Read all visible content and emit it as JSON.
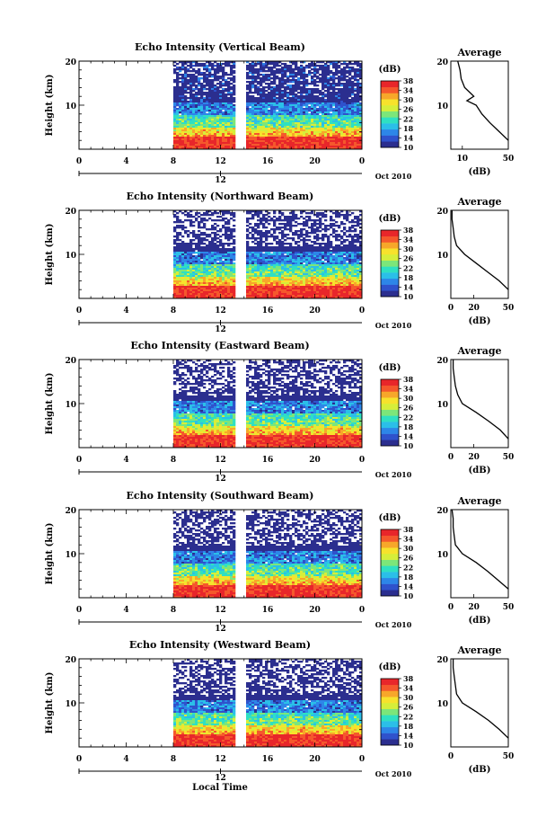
{
  "figure": {
    "colorbar_ticks": [
      "38",
      "34",
      "30",
      "26",
      "22",
      "18",
      "14",
      "10"
    ],
    "colorbar_unit": "(dB)",
    "colorbar_colors": [
      "#2b2e8f",
      "#2f52cc",
      "#2d86e8",
      "#2bbfe8",
      "#2fe0c2",
      "#7ce67a",
      "#d6ee3a",
      "#f7e22c",
      "#f7a72a",
      "#f5582c",
      "#e8262a"
    ],
    "height_label": "Height (km)",
    "time_ticks": [
      "0",
      "4",
      "8",
      "12",
      "16",
      "20",
      "0"
    ],
    "time_sub_tick": "12",
    "date_label": "Oct 2010",
    "avg_title": "Average",
    "avg_xlabel": "(dB)",
    "height_ticks": [
      "20",
      "10"
    ],
    "x_axis_title": "Local Time"
  },
  "chart_data": [
    {
      "type": "heatmap",
      "title": "Echo Intensity (Vertical Beam)",
      "avg_xticks": [
        "10",
        "50"
      ],
      "avg_xlim": [
        0,
        50
      ],
      "avg_profile": {
        "height_km": [
          2,
          4,
          6,
          8,
          10,
          11,
          12,
          14,
          16,
          18,
          20
        ],
        "db": [
          50,
          42,
          34,
          27,
          22,
          14,
          20,
          12,
          9,
          8,
          6
        ]
      },
      "ylim_km": [
        0,
        20
      ],
      "xlim_hours": [
        0,
        24
      ],
      "data_start_hour": 8,
      "clim_db": [
        10,
        38
      ]
    },
    {
      "type": "heatmap",
      "title": "Echo Intensity (Northward Beam)",
      "avg_xticks": [
        "0",
        "20",
        "50"
      ],
      "avg_xlim": [
        0,
        50
      ],
      "avg_profile": {
        "height_km": [
          2,
          4,
          6,
          8,
          10,
          12,
          14,
          16,
          18,
          20
        ],
        "db": [
          50,
          42,
          32,
          22,
          12,
          5,
          3,
          2,
          1,
          1
        ]
      },
      "ylim_km": [
        0,
        20
      ],
      "xlim_hours": [
        0,
        24
      ],
      "data_start_hour": 8,
      "clim_db": [
        10,
        38
      ]
    },
    {
      "type": "heatmap",
      "title": "Echo Intensity (Eastward Beam)",
      "avg_xticks": [
        "0",
        "20",
        "50"
      ],
      "avg_xlim": [
        0,
        50
      ],
      "avg_profile": {
        "height_km": [
          2,
          4,
          6,
          8,
          10,
          12,
          14,
          16,
          18,
          20
        ],
        "db": [
          50,
          43,
          33,
          22,
          10,
          6,
          4,
          3,
          2,
          2
        ]
      },
      "ylim_km": [
        0,
        20
      ],
      "xlim_hours": [
        0,
        24
      ],
      "data_start_hour": 8,
      "clim_db": [
        10,
        38
      ]
    },
    {
      "type": "heatmap",
      "title": "Echo Intensity (Southward Beam)",
      "avg_xticks": [
        "0",
        "20",
        "50"
      ],
      "avg_xlim": [
        0,
        50
      ],
      "avg_profile": {
        "height_km": [
          2,
          4,
          6,
          8,
          10,
          12,
          14,
          16,
          18,
          20
        ],
        "db": [
          50,
          41,
          32,
          22,
          10,
          4,
          3,
          2,
          2,
          1
        ]
      },
      "ylim_km": [
        0,
        20
      ],
      "xlim_hours": [
        0,
        24
      ],
      "data_start_hour": 8,
      "clim_db": [
        10,
        38
      ]
    },
    {
      "type": "heatmap",
      "title": "Echo Intensity (Westward Beam)",
      "avg_xticks": [
        "0",
        "50"
      ],
      "avg_xlim": [
        0,
        50
      ],
      "avg_profile": {
        "height_km": [
          2,
          4,
          6,
          8,
          10,
          12,
          14,
          16,
          18,
          20
        ],
        "db": [
          50,
          42,
          33,
          22,
          10,
          5,
          4,
          3,
          2,
          2
        ]
      },
      "ylim_km": [
        0,
        20
      ],
      "xlim_hours": [
        0,
        24
      ],
      "data_start_hour": 8,
      "clim_db": [
        10,
        38
      ]
    }
  ]
}
